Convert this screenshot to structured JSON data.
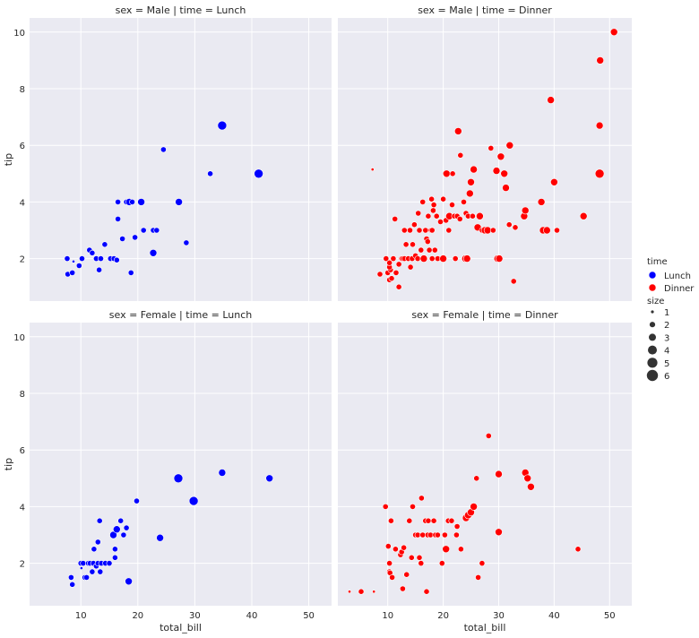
{
  "chart_data": {
    "type": "scatter",
    "x_label": "total_bill",
    "y_label": "tip",
    "xlim": [
      1,
      54
    ],
    "ylim": [
      0.5,
      10.5
    ],
    "x_ticks": [
      10,
      20,
      30,
      40,
      50
    ],
    "y_ticks": [
      2,
      4,
      6,
      8,
      10
    ],
    "grid": true,
    "legend_placement": "right",
    "colors": {
      "Lunch": "#0000ff",
      "Dinner": "#ff0000",
      "background": "#eaeaf2",
      "grid": "#ffffff"
    },
    "legend": {
      "hue_title": "time",
      "hue_entries": [
        "Lunch",
        "Dinner"
      ],
      "size_title": "size",
      "size_entries": [
        "1",
        "2",
        "3",
        "4",
        "5",
        "6"
      ]
    },
    "panels": [
      {
        "title": "sex = Male | time = Lunch",
        "row": 0,
        "col": 0,
        "time": "Lunch",
        "points": [
          [
            7.7,
            1.45,
            2
          ],
          [
            7.6,
            2.0,
            2
          ],
          [
            8.5,
            1.5,
            2
          ],
          [
            8.7,
            1.9,
            1
          ],
          [
            9.7,
            1.75,
            2
          ],
          [
            10.2,
            2.0,
            2
          ],
          [
            11.5,
            2.3,
            2
          ],
          [
            12.0,
            2.2,
            2
          ],
          [
            12.7,
            2.0,
            2
          ],
          [
            13.2,
            1.6,
            2
          ],
          [
            13.5,
            2.0,
            2
          ],
          [
            14.2,
            2.5,
            2
          ],
          [
            15.2,
            2.0,
            2
          ],
          [
            15.8,
            2.0,
            2
          ],
          [
            16.5,
            4.0,
            2
          ],
          [
            16.5,
            3.4,
            2
          ],
          [
            17.3,
            2.7,
            2
          ],
          [
            16.3,
            1.95,
            2
          ],
          [
            18.0,
            4.0,
            2
          ],
          [
            18.5,
            4.0,
            3
          ],
          [
            19.0,
            4.0,
            2
          ],
          [
            18.8,
            1.5,
            2
          ],
          [
            19.5,
            2.75,
            2
          ],
          [
            20.6,
            4.0,
            3
          ],
          [
            21.0,
            3.0,
            2
          ],
          [
            22.7,
            3.0,
            2
          ],
          [
            22.7,
            2.2,
            3
          ],
          [
            23.3,
            3.0,
            2
          ],
          [
            24.5,
            5.85,
            2
          ],
          [
            27.2,
            4.0,
            3
          ],
          [
            28.5,
            2.56,
            2
          ],
          [
            32.7,
            5.0,
            2
          ],
          [
            34.8,
            6.7,
            4
          ],
          [
            41.2,
            5.0,
            4
          ]
        ]
      },
      {
        "title": "sex = Male | time = Dinner",
        "row": 0,
        "col": 1,
        "time": "Dinner",
        "points": [
          [
            7.25,
            5.15,
            1
          ],
          [
            8.6,
            1.45,
            2
          ],
          [
            9.7,
            2.0,
            2
          ],
          [
            10.0,
            1.5,
            2
          ],
          [
            10.3,
            1.25,
            2
          ],
          [
            10.5,
            1.6,
            2
          ],
          [
            10.3,
            1.7,
            2
          ],
          [
            10.7,
            1.3,
            2
          ],
          [
            10.3,
            1.85,
            2
          ],
          [
            11.0,
            2.0,
            2
          ],
          [
            11.3,
            3.4,
            2
          ],
          [
            11.5,
            1.5,
            2
          ],
          [
            12.0,
            1.8,
            2
          ],
          [
            12.0,
            1.0,
            2
          ],
          [
            12.5,
            2.0,
            2
          ],
          [
            12.7,
            2.0,
            2
          ],
          [
            13.0,
            2.0,
            2
          ],
          [
            13.3,
            2.5,
            2
          ],
          [
            13.0,
            3.0,
            2
          ],
          [
            13.7,
            2.0,
            2
          ],
          [
            14.0,
            3.0,
            2
          ],
          [
            14.1,
            1.7,
            2
          ],
          [
            14.4,
            2.0,
            2
          ],
          [
            14.5,
            2.5,
            2
          ],
          [
            14.8,
            3.2,
            2
          ],
          [
            15.0,
            2.1,
            2
          ],
          [
            15.4,
            2.0,
            2
          ],
          [
            15.5,
            3.6,
            2
          ],
          [
            15.7,
            3.0,
            2
          ],
          [
            16.0,
            2.3,
            2
          ],
          [
            16.3,
            4.0,
            2
          ],
          [
            16.5,
            2.0,
            3
          ],
          [
            16.8,
            3.0,
            2
          ],
          [
            17.0,
            2.7,
            2
          ],
          [
            17.2,
            2.6,
            2
          ],
          [
            17.3,
            3.5,
            2
          ],
          [
            17.5,
            2.3,
            2
          ],
          [
            17.8,
            3.0,
            2
          ],
          [
            17.9,
            4.1,
            2
          ],
          [
            18.0,
            2.0,
            2
          ],
          [
            18.0,
            3.0,
            2
          ],
          [
            18.2,
            3.7,
            2
          ],
          [
            18.5,
            2.3,
            2
          ],
          [
            18.3,
            3.9,
            2
          ],
          [
            18.8,
            3.5,
            2
          ],
          [
            19.0,
            2.0,
            2
          ],
          [
            19.5,
            3.3,
            2
          ],
          [
            20.0,
            2.0,
            3
          ],
          [
            20.0,
            4.1,
            2
          ],
          [
            20.5,
            3.35,
            2
          ],
          [
            20.6,
            5.0,
            3
          ],
          [
            21.0,
            3.0,
            2
          ],
          [
            21.1,
            3.5,
            3
          ],
          [
            21.6,
            3.9,
            2
          ],
          [
            21.7,
            5.0,
            2
          ],
          [
            22.0,
            3.5,
            2
          ],
          [
            22.2,
            2.0,
            2
          ],
          [
            22.5,
            3.5,
            2
          ],
          [
            22.7,
            6.5,
            3
          ],
          [
            23.0,
            3.4,
            2
          ],
          [
            23.1,
            5.65,
            2
          ],
          [
            23.7,
            4.0,
            2
          ],
          [
            24.0,
            2.0,
            3
          ],
          [
            24.1,
            3.6,
            2
          ],
          [
            24.3,
            2.0,
            3
          ],
          [
            24.5,
            3.5,
            2
          ],
          [
            24.8,
            4.3,
            3
          ],
          [
            25.0,
            4.7,
            3
          ],
          [
            25.3,
            3.5,
            2
          ],
          [
            25.5,
            5.15,
            3
          ],
          [
            26.2,
            3.1,
            3
          ],
          [
            26.6,
            3.5,
            3
          ],
          [
            27.0,
            3.0,
            2
          ],
          [
            27.5,
            3.0,
            3
          ],
          [
            28.0,
            3.0,
            3
          ],
          [
            28.6,
            5.9,
            2
          ],
          [
            29.0,
            3.0,
            2
          ],
          [
            29.6,
            5.1,
            3
          ],
          [
            29.8,
            2.0,
            3
          ],
          [
            30.1,
            2.0,
            3
          ],
          [
            30.4,
            5.6,
            3
          ],
          [
            31.0,
            5.0,
            3
          ],
          [
            31.3,
            4.5,
            3
          ],
          [
            31.9,
            3.2,
            2
          ],
          [
            32.0,
            6.0,
            3
          ],
          [
            32.7,
            1.2,
            2
          ],
          [
            33.0,
            3.1,
            2
          ],
          [
            34.6,
            3.5,
            3
          ],
          [
            34.8,
            3.7,
            3
          ],
          [
            37.7,
            4.0,
            3
          ],
          [
            38.0,
            3.0,
            3
          ],
          [
            38.7,
            3.0,
            3
          ],
          [
            39.4,
            7.6,
            3
          ],
          [
            40.0,
            4.7,
            3
          ],
          [
            40.5,
            3.0,
            2
          ],
          [
            45.3,
            3.5,
            3
          ],
          [
            48.2,
            6.7,
            3
          ],
          [
            48.3,
            9.0,
            3
          ],
          [
            48.2,
            5.0,
            4
          ],
          [
            50.8,
            10.0,
            3
          ]
        ]
      },
      {
        "title": "sex = Female | time = Lunch",
        "row": 1,
        "col": 0,
        "time": "Lunch",
        "points": [
          [
            8.3,
            1.5,
            2
          ],
          [
            8.5,
            1.25,
            2
          ],
          [
            10.0,
            2.0,
            2
          ],
          [
            10.1,
            1.83,
            1
          ],
          [
            10.4,
            2.0,
            2
          ],
          [
            10.7,
            1.5,
            2
          ],
          [
            11.0,
            1.5,
            2
          ],
          [
            11.3,
            2.0,
            2
          ],
          [
            11.6,
            2.0,
            2
          ],
          [
            12.0,
            1.7,
            2
          ],
          [
            12.2,
            2.0,
            2
          ],
          [
            12.3,
            2.5,
            2
          ],
          [
            12.7,
            1.9,
            2
          ],
          [
            13.0,
            2.0,
            2
          ],
          [
            13.0,
            2.75,
            2
          ],
          [
            13.3,
            3.5,
            2
          ],
          [
            13.4,
            1.7,
            2
          ],
          [
            13.6,
            2.0,
            2
          ],
          [
            14.3,
            2.0,
            2
          ],
          [
            15.0,
            2.0,
            2
          ],
          [
            15.7,
            3.0,
            3
          ],
          [
            16.0,
            2.2,
            2
          ],
          [
            16.0,
            2.5,
            2
          ],
          [
            16.3,
            3.2,
            3
          ],
          [
            17.0,
            3.5,
            2
          ],
          [
            17.5,
            3.0,
            2
          ],
          [
            18.0,
            3.25,
            2
          ],
          [
            18.4,
            1.36,
            3
          ],
          [
            19.8,
            4.2,
            2
          ],
          [
            23.9,
            2.9,
            3
          ],
          [
            27.1,
            5.0,
            4
          ],
          [
            29.8,
            4.2,
            4
          ],
          [
            34.8,
            5.2,
            3
          ],
          [
            43.1,
            5.0,
            3
          ]
        ]
      },
      {
        "title": "sex = Female | time = Dinner",
        "row": 1,
        "col": 1,
        "time": "Dinner",
        "points": [
          [
            3.1,
            1.0,
            1
          ],
          [
            5.2,
            1.0,
            2
          ],
          [
            7.5,
            1.0,
            1
          ],
          [
            9.6,
            4.0,
            2
          ],
          [
            10.1,
            2.6,
            2
          ],
          [
            10.3,
            1.7,
            2
          ],
          [
            10.4,
            1.66,
            2
          ],
          [
            10.3,
            2.0,
            2
          ],
          [
            10.6,
            3.5,
            2
          ],
          [
            10.8,
            1.5,
            2
          ],
          [
            11.4,
            2.5,
            2
          ],
          [
            12.3,
            2.3,
            2
          ],
          [
            12.5,
            2.4,
            2
          ],
          [
            12.7,
            1.1,
            2
          ],
          [
            12.9,
            2.55,
            2
          ],
          [
            13.4,
            1.6,
            2
          ],
          [
            13.9,
            3.5,
            2
          ],
          [
            14.3,
            2.2,
            2
          ],
          [
            14.5,
            4.0,
            2
          ],
          [
            15.0,
            3.0,
            2
          ],
          [
            15.4,
            3.0,
            2
          ],
          [
            15.7,
            2.2,
            2
          ],
          [
            16.0,
            2.0,
            2
          ],
          [
            16.1,
            4.3,
            2
          ],
          [
            16.3,
            3.0,
            2
          ],
          [
            16.8,
            3.5,
            2
          ],
          [
            17.0,
            1.0,
            2
          ],
          [
            17.2,
            3.0,
            2
          ],
          [
            17.3,
            3.5,
            2
          ],
          [
            17.7,
            3.0,
            2
          ],
          [
            18.3,
            3.5,
            2
          ],
          [
            18.6,
            3.0,
            2
          ],
          [
            19.0,
            3.0,
            2
          ],
          [
            19.8,
            2.0,
            2
          ],
          [
            20.3,
            3.0,
            2
          ],
          [
            20.5,
            2.5,
            3
          ],
          [
            20.9,
            3.5,
            2
          ],
          [
            21.5,
            3.5,
            2
          ],
          [
            22.4,
            3.0,
            2
          ],
          [
            22.5,
            3.3,
            2
          ],
          [
            23.2,
            2.5,
            2
          ],
          [
            24.1,
            3.6,
            3
          ],
          [
            24.5,
            3.7,
            3
          ],
          [
            25.0,
            3.8,
            3
          ],
          [
            25.5,
            4.0,
            3
          ],
          [
            26.0,
            5.0,
            2
          ],
          [
            26.3,
            1.5,
            2
          ],
          [
            27.0,
            2.0,
            2
          ],
          [
            28.2,
            6.5,
            2
          ],
          [
            30.0,
            5.15,
            3
          ],
          [
            30.0,
            3.1,
            3
          ],
          [
            34.8,
            5.2,
            3
          ],
          [
            35.2,
            5.0,
            3
          ],
          [
            35.8,
            4.7,
            3
          ],
          [
            44.3,
            2.5,
            2
          ]
        ]
      }
    ]
  }
}
